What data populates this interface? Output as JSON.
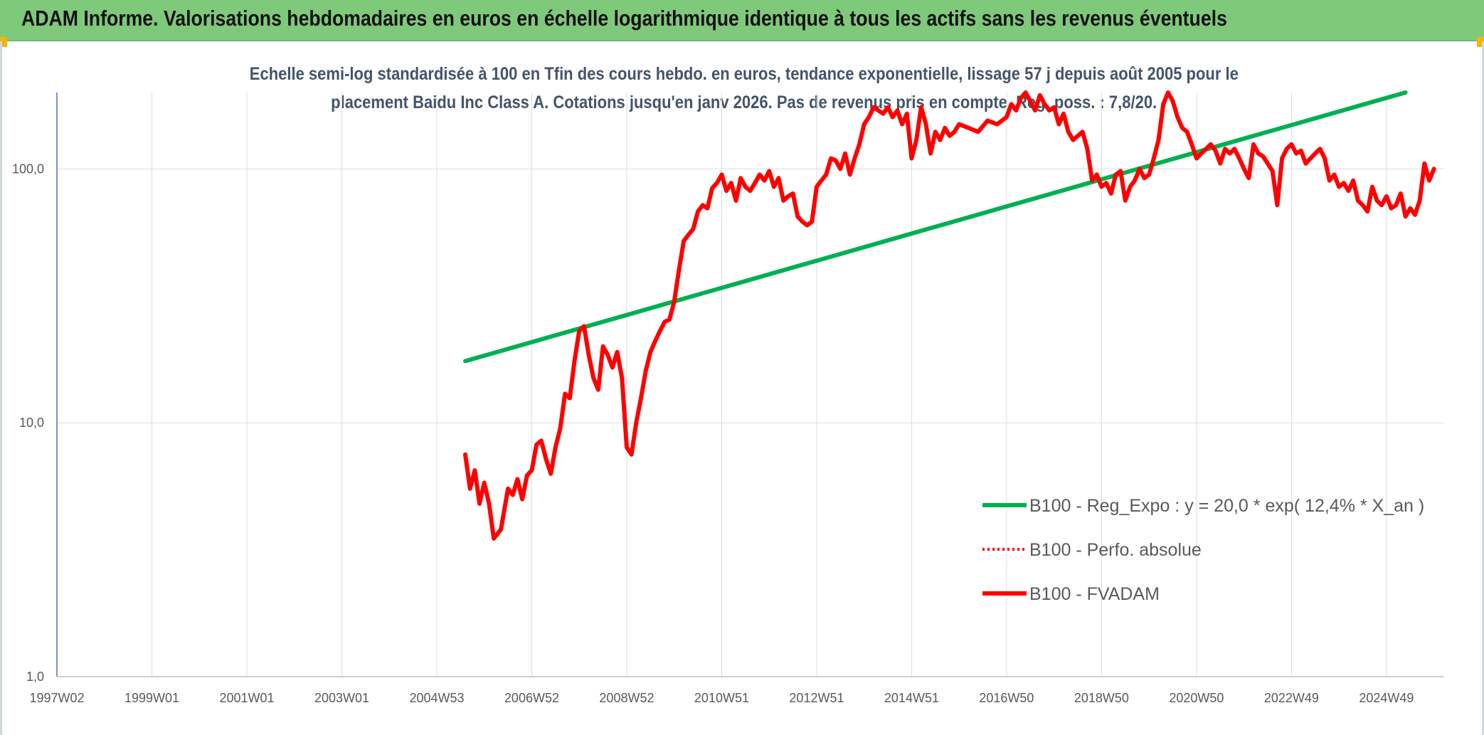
{
  "banner": {
    "title": "ADAM Informe. Valorisations hebdomadaires en euros en échelle logarithmique identique à tous les actifs sans les revenus éventuels"
  },
  "colors": {
    "banner_bg": "#7fc97a",
    "trend": "#00b050",
    "price": "#ff0000",
    "grid": "#d9dde3",
    "axis": "#4472c4"
  },
  "chart_data": {
    "type": "line",
    "title_lines": [
      "Echelle semi-log standardisée à 100 en Tfin des cours hebdo. en euros, tendance exponentielle, lissage 57 j depuis août 2005 pour le",
      "placement Baidu Inc Class A. Cotations jusqu'en janv 2026. Pas de revenus pris en compte. Reg. poss. : 7,8/20."
    ],
    "y_scale": "log",
    "ylim": [
      1,
      200
    ],
    "y_ticks": [
      1,
      10,
      100
    ],
    "y_tick_labels": [
      "1,0",
      "10,0",
      "100,0"
    ],
    "xlim": [
      1997.0,
      2026.2
    ],
    "x_ticks": [
      1997.0,
      1999.0,
      2001.0,
      2003.0,
      2005.0,
      2007.0,
      2009.0,
      2011.0,
      2013.0,
      2015.0,
      2017.0,
      2019.0,
      2021.0,
      2023.0,
      2025.0
    ],
    "x_tick_labels": [
      "1997W02",
      "1999W01",
      "2001W01",
      "2003W01",
      "2004W53",
      "2006W52",
      "2008W52",
      "2010W51",
      "2012W51",
      "2014W51",
      "2016W50",
      "2018W50",
      "2020W50",
      "2022W49",
      "2024W49"
    ],
    "grid": true,
    "legend_position": "bottom-right",
    "series": [
      {
        "name": "B100 - Reg_Expo : y = 20,0 * exp( 12,4% *  X_an )",
        "color": "#00b050",
        "style": "solid",
        "x": [
          2005.6,
          2025.4
        ],
        "y": [
          17.5,
          200
        ]
      },
      {
        "name": "B100 - Perfo. absolue",
        "color": "#ff0000",
        "style": "dotted",
        "x": [],
        "y": []
      },
      {
        "name": "B100 - FVADAM",
        "color": "#ff0000",
        "style": "solid",
        "x": [
          2005.6,
          2005.7,
          2005.8,
          2005.9,
          2006.0,
          2006.1,
          2006.2,
          2006.35,
          2006.5,
          2006.6,
          2006.7,
          2006.8,
          2006.9,
          2007.0,
          2007.1,
          2007.2,
          2007.3,
          2007.4,
          2007.5,
          2007.6,
          2007.7,
          2007.8,
          2007.9,
          2008.0,
          2008.1,
          2008.2,
          2008.3,
          2008.4,
          2008.5,
          2008.6,
          2008.7,
          2008.8,
          2008.9,
          2009.0,
          2009.1,
          2009.2,
          2009.3,
          2009.4,
          2009.5,
          2009.6,
          2009.7,
          2009.8,
          2009.9,
          2010.0,
          2010.1,
          2010.2,
          2010.3,
          2010.4,
          2010.5,
          2010.6,
          2010.7,
          2010.8,
          2010.9,
          2011.0,
          2011.1,
          2011.2,
          2011.3,
          2011.4,
          2011.5,
          2011.6,
          2011.7,
          2011.8,
          2011.9,
          2012.0,
          2012.1,
          2012.2,
          2012.3,
          2012.4,
          2012.5,
          2012.6,
          2012.7,
          2012.8,
          2012.9,
          2013.0,
          2013.1,
          2013.2,
          2013.3,
          2013.4,
          2013.5,
          2013.6,
          2013.7,
          2013.8,
          2013.9,
          2014.0,
          2014.1,
          2014.2,
          2014.3,
          2014.4,
          2014.5,
          2014.6,
          2014.7,
          2014.8,
          2014.9,
          2015.0,
          2015.1,
          2015.2,
          2015.3,
          2015.4,
          2015.5,
          2015.6,
          2015.7,
          2015.8,
          2015.9,
          2016.0,
          2016.2,
          2016.4,
          2016.6,
          2016.8,
          2017.0,
          2017.1,
          2017.2,
          2017.3,
          2017.4,
          2017.5,
          2017.6,
          2017.7,
          2017.8,
          2017.9,
          2018.0,
          2018.1,
          2018.2,
          2018.3,
          2018.4,
          2018.5,
          2018.6,
          2018.7,
          2018.8,
          2018.9,
          2019.0,
          2019.1,
          2019.2,
          2019.3,
          2019.4,
          2019.5,
          2019.6,
          2019.7,
          2019.8,
          2019.9,
          2020.0,
          2020.1,
          2020.2,
          2020.3,
          2020.4,
          2020.5,
          2020.6,
          2020.7,
          2020.8,
          2020.9,
          2021.0,
          2021.1,
          2021.2,
          2021.3,
          2021.4,
          2021.5,
          2021.6,
          2021.7,
          2021.8,
          2021.9,
          2022.0,
          2022.1,
          2022.2,
          2022.3,
          2022.4,
          2022.5,
          2022.6,
          2022.7,
          2022.8,
          2022.9,
          2023.0,
          2023.1,
          2023.2,
          2023.3,
          2023.4,
          2023.5,
          2023.6,
          2023.7,
          2023.8,
          2023.9,
          2024.0,
          2024.1,
          2024.2,
          2024.3,
          2024.4,
          2024.5,
          2024.6,
          2024.7,
          2024.8,
          2024.9,
          2025.0,
          2025.1,
          2025.2,
          2025.3,
          2025.4,
          2025.5,
          2025.6,
          2025.7,
          2025.8,
          2025.9,
          2026.0
        ],
        "y": [
          7.5,
          5.5,
          6.5,
          4.8,
          5.8,
          4.8,
          3.5,
          3.8,
          5.5,
          5.2,
          6.0,
          5.0,
          6.2,
          6.5,
          8.2,
          8.5,
          7.2,
          6.3,
          8.0,
          9.5,
          13.0,
          12.5,
          17.5,
          23.0,
          24.0,
          18.5,
          15.0,
          13.5,
          20.0,
          18.5,
          16.5,
          19.0,
          15.0,
          8.0,
          7.5,
          10.0,
          12.5,
          16.0,
          19.0,
          21.0,
          23.0,
          25.0,
          25.5,
          30.0,
          40.0,
          52.0,
          55.0,
          58.0,
          68.0,
          72.0,
          70.0,
          84.0,
          88.0,
          95.0,
          82.0,
          88.0,
          75.0,
          92.0,
          85.0,
          82.0,
          88.0,
          95.0,
          90.0,
          98.0,
          85.0,
          92.0,
          75.0,
          78.0,
          80.0,
          65.0,
          62.0,
          60.0,
          62.0,
          85.0,
          90.0,
          95.0,
          110.0,
          108.0,
          100.0,
          115.0,
          95.0,
          110.0,
          125.0,
          150.0,
          160.0,
          175.0,
          170.0,
          165.0,
          175.0,
          160.0,
          170.0,
          150.0,
          165.0,
          110.0,
          130.0,
          175.0,
          150.0,
          115.0,
          140.0,
          130.0,
          145.0,
          135.0,
          140.0,
          150.0,
          145.0,
          140.0,
          155.0,
          150.0,
          160.0,
          180.0,
          170.0,
          190.0,
          200.0,
          185.0,
          170.0,
          195.0,
          180.0,
          170.0,
          175.0,
          150.0,
          165.0,
          140.0,
          130.0,
          135.0,
          140.0,
          120.0,
          90.0,
          95.0,
          85.0,
          88.0,
          80.0,
          95.0,
          98.0,
          75.0,
          85.0,
          90.0,
          100.0,
          92.0,
          95.0,
          110.0,
          130.0,
          180.0,
          200.0,
          185.0,
          160.0,
          145.0,
          140.0,
          125.0,
          110.0,
          115.0,
          120.0,
          125.0,
          118.0,
          105.0,
          120.0,
          115.0,
          120.0,
          110.0,
          100.0,
          92.0,
          125.0,
          115.0,
          112.0,
          105.0,
          98.0,
          72.0,
          110.0,
          120.0,
          125.0,
          115.0,
          118.0,
          105.0,
          110.0,
          115.0,
          120.0,
          110.0,
          90.0,
          95.0,
          85.0,
          88.0,
          82.0,
          90.0,
          75.0,
          72.0,
          68.0,
          85.0,
          75.0,
          72.0,
          78.0,
          70.0,
          72.0,
          80.0,
          65.0,
          70.0,
          66.0,
          75.0,
          105.0,
          90.0,
          100.0
        ]
      }
    ]
  }
}
